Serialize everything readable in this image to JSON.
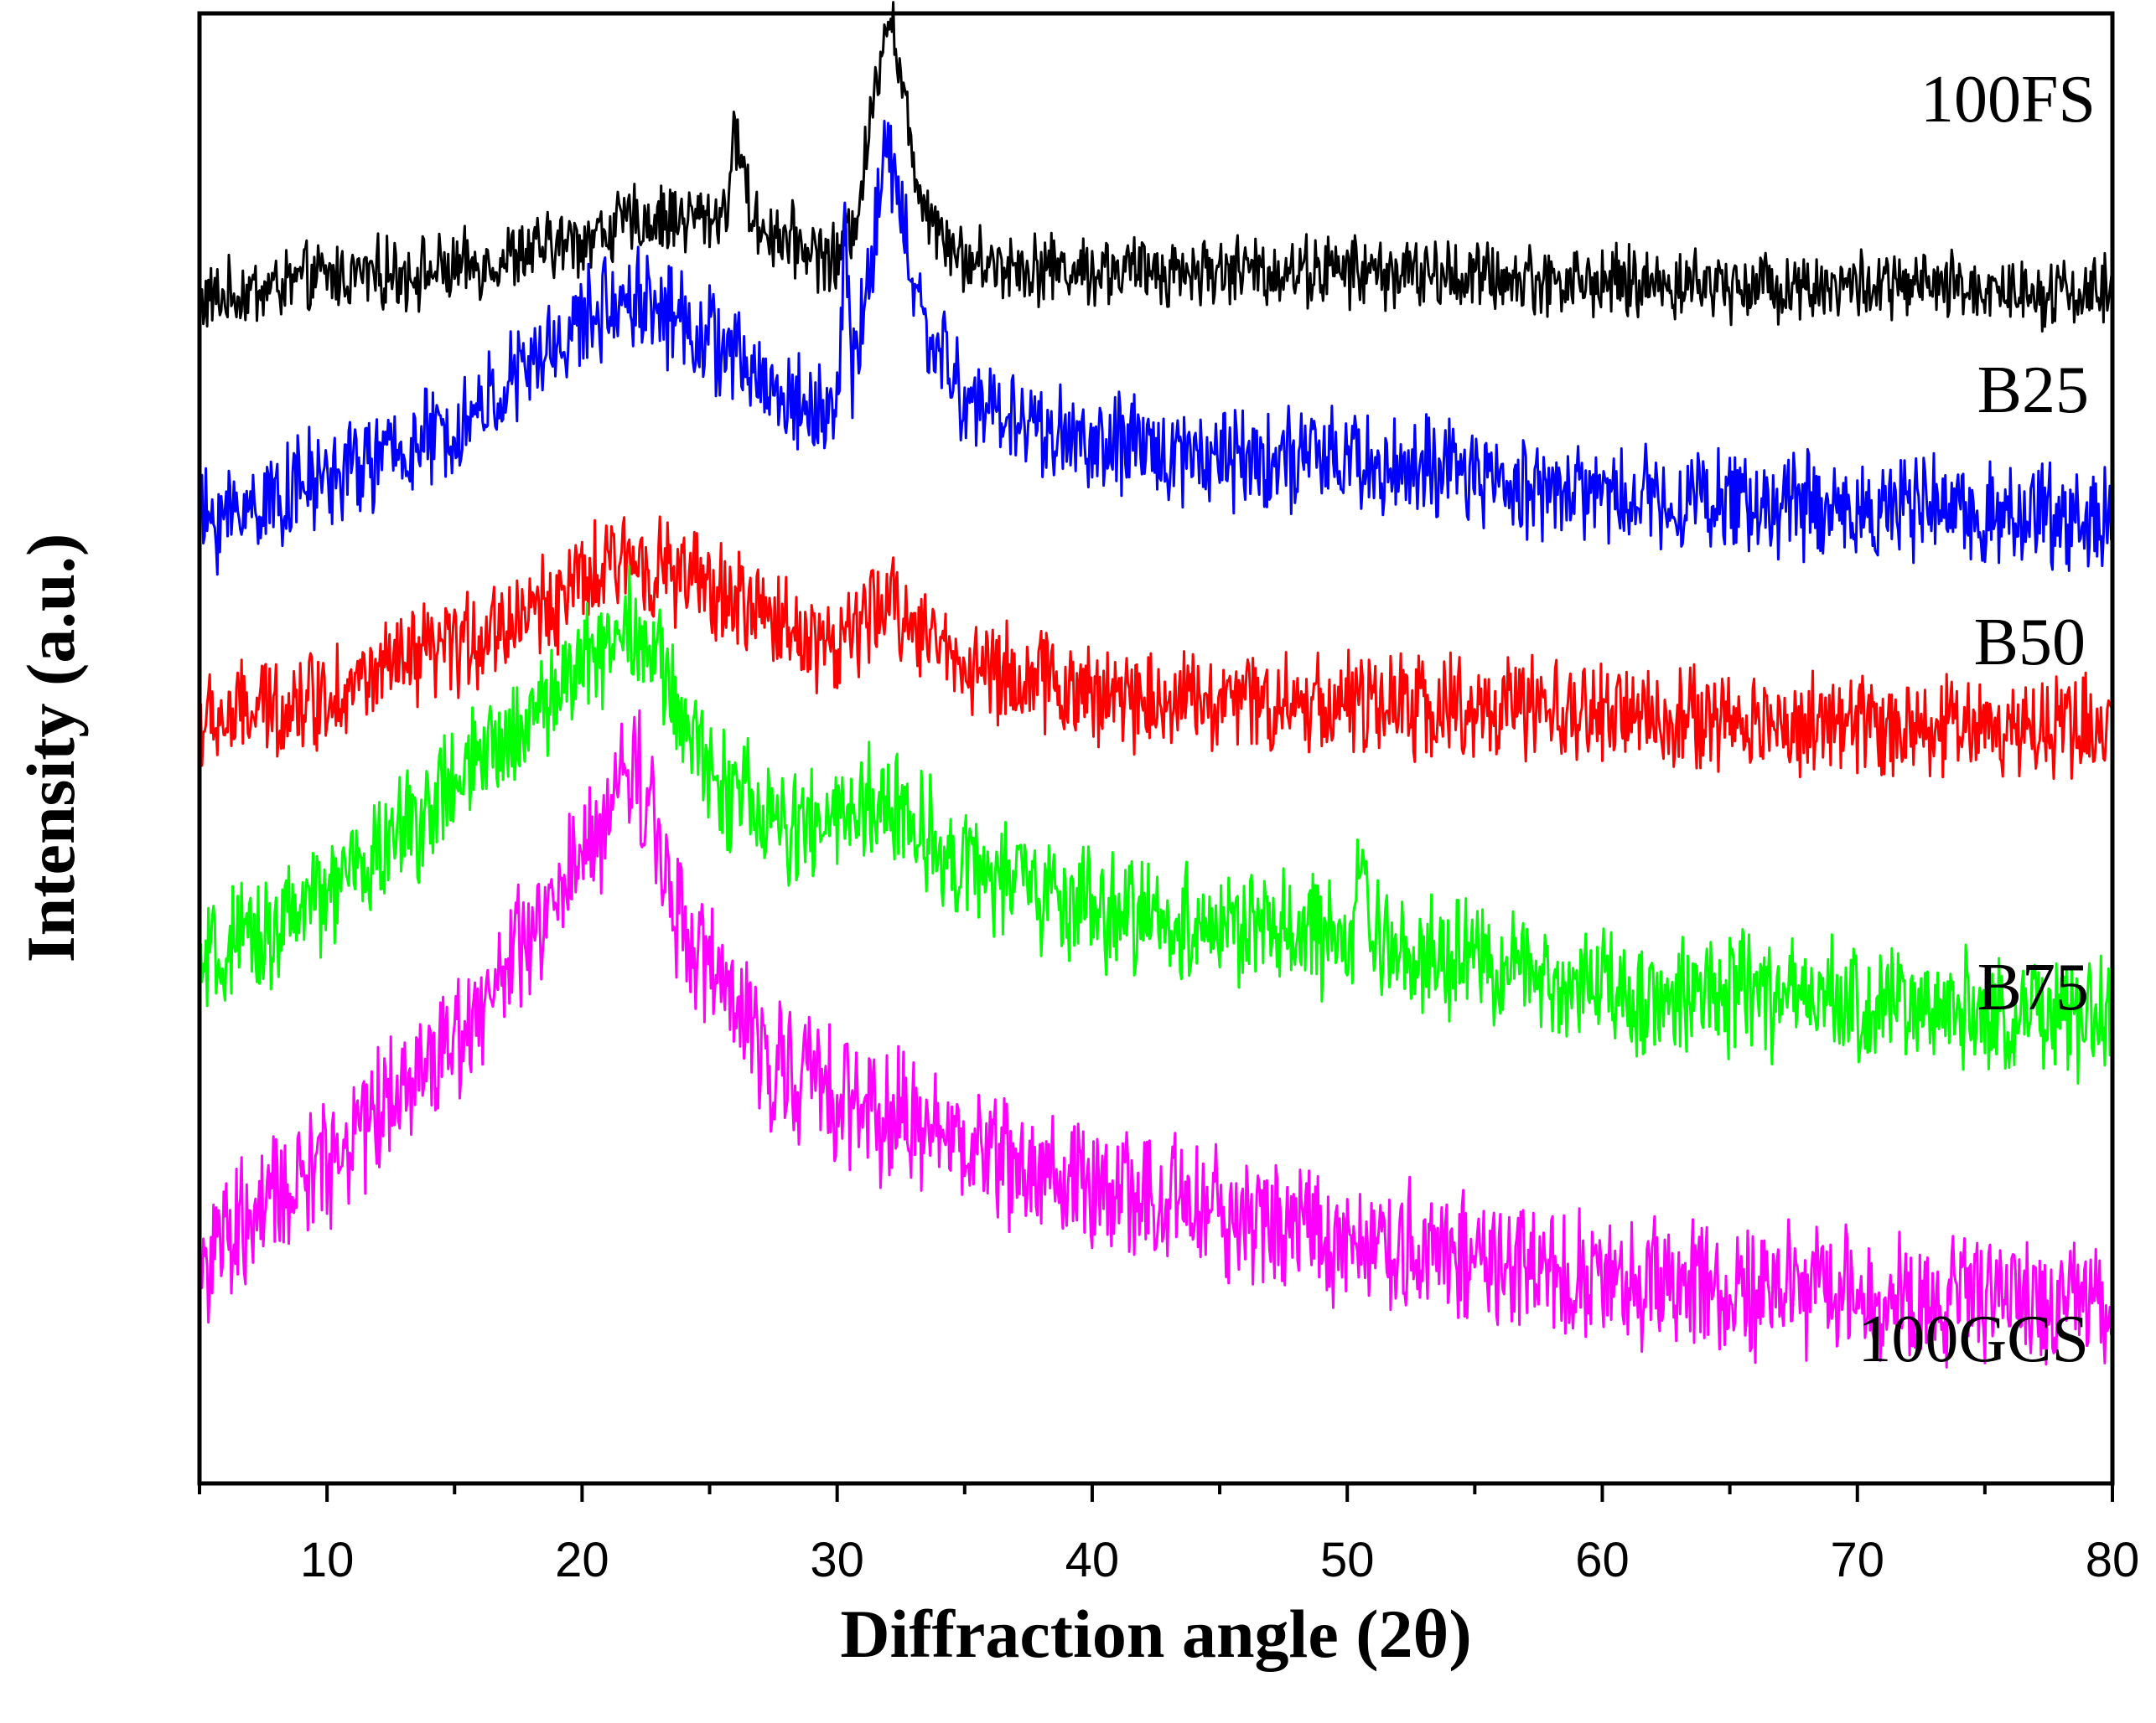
{
  "chart_data": {
    "type": "line",
    "title": "",
    "xlabel": "Diffraction angle (2θ)",
    "ylabel": "Intensity (a.u.)",
    "xlim": [
      5,
      80
    ],
    "xticks": [
      10,
      20,
      30,
      40,
      50,
      60,
      70,
      80
    ],
    "xtick_labels": [
      "10",
      "20",
      "30",
      "40",
      "50",
      "60",
      "70",
      "80"
    ],
    "y_ticks_shown": false,
    "grid": false,
    "legend": "none (series labelled at right end)",
    "series": [
      {
        "name": "100FS",
        "color": "#000000",
        "baseline_au": 3.47,
        "noise_au": 0.09,
        "broad_peaks": [
          {
            "center": 22,
            "width": 6,
            "height": 0.22
          }
        ],
        "sharp_peaks": [
          {
            "center": 26.1,
            "width": 0.35,
            "height": 0.25
          },
          {
            "center": 32.0,
            "width": 0.8,
            "height": 0.45
          }
        ],
        "points": [
          [
            5,
            3.42
          ],
          [
            10,
            3.5
          ],
          [
            15,
            3.52
          ],
          [
            20,
            3.62
          ],
          [
            22,
            3.68
          ],
          [
            26,
            3.7
          ],
          [
            30,
            3.55
          ],
          [
            32,
            3.9
          ],
          [
            35,
            3.55
          ],
          [
            40,
            3.52
          ],
          [
            50,
            3.52
          ],
          [
            60,
            3.48
          ],
          [
            70,
            3.47
          ],
          [
            80,
            3.45
          ]
        ]
      },
      {
        "name": "B25",
        "color": "#0000ff",
        "baseline_au": 2.72,
        "noise_au": 0.13,
        "broad_peaks": [
          {
            "center": 22,
            "width": 5,
            "height": 0.75
          },
          {
            "center": 32,
            "width": 2.5,
            "height": 0.3
          }
        ],
        "sharp_peaks": [
          {
            "center": 30.3,
            "width": 0.15,
            "height": 0.55
          },
          {
            "center": 32.0,
            "width": 0.8,
            "height": 0.35
          }
        ],
        "points": [
          [
            5,
            2.7
          ],
          [
            10,
            2.85
          ],
          [
            15,
            3.0
          ],
          [
            20,
            3.35
          ],
          [
            22,
            3.45
          ],
          [
            25,
            3.3
          ],
          [
            28,
            3.1
          ],
          [
            30,
            3.05
          ],
          [
            32,
            3.55
          ],
          [
            35,
            3.1
          ],
          [
            40,
            2.95
          ],
          [
            50,
            2.9
          ],
          [
            60,
            2.8
          ],
          [
            70,
            2.75
          ],
          [
            80,
            2.72
          ]
        ]
      },
      {
        "name": "B50",
        "color": "#ff0000",
        "baseline_au": 2.05,
        "noise_au": 0.13,
        "broad_peaks": [
          {
            "center": 22,
            "width": 5.5,
            "height": 0.55
          },
          {
            "center": 32,
            "width": 2.5,
            "height": 0.25
          }
        ],
        "sharp_peaks": [],
        "points": [
          [
            5,
            2.05
          ],
          [
            10,
            2.15
          ],
          [
            15,
            2.3
          ],
          [
            20,
            2.5
          ],
          [
            22,
            2.6
          ],
          [
            26,
            2.45
          ],
          [
            30,
            2.3
          ],
          [
            32,
            2.45
          ],
          [
            35,
            2.25
          ],
          [
            40,
            2.15
          ],
          [
            50,
            2.12
          ],
          [
            60,
            2.08
          ],
          [
            70,
            2.05
          ],
          [
            80,
            2.05
          ]
        ]
      },
      {
        "name": "B75",
        "color": "#00ff00",
        "baseline_au": 1.1,
        "noise_au": 0.15,
        "broad_peaks": [
          {
            "center": 21.5,
            "width": 5,
            "height": 1.2
          },
          {
            "center": 16.5,
            "width": 2.5,
            "height": 0.3
          },
          {
            "center": 32.5,
            "width": 2.5,
            "height": 0.35
          }
        ],
        "sharp_peaks": [
          {
            "center": 50.5,
            "width": 0.3,
            "height": 0.2
          }
        ],
        "points": [
          [
            5,
            1.25
          ],
          [
            10,
            1.5
          ],
          [
            15,
            1.85
          ],
          [
            17,
            2.0
          ],
          [
            20,
            2.25
          ],
          [
            22,
            2.4
          ],
          [
            25,
            1.9
          ],
          [
            28,
            1.7
          ],
          [
            32,
            1.8
          ],
          [
            35,
            1.6
          ],
          [
            40,
            1.45
          ],
          [
            50,
            1.35
          ],
          [
            60,
            1.2
          ],
          [
            70,
            1.15
          ],
          [
            80,
            1.1
          ]
        ]
      },
      {
        "name": "100GCS",
        "color": "#ff00ff",
        "baseline_au": 0.18,
        "noise_au": 0.17,
        "broad_peaks": [
          {
            "center": 22,
            "width": 4,
            "height": 1.7
          },
          {
            "center": 17,
            "width": 3,
            "height": 0.55
          }
        ],
        "sharp_peaks": [],
        "points": [
          [
            5,
            0.3
          ],
          [
            10,
            0.65
          ],
          [
            15,
            1.05
          ],
          [
            18,
            1.35
          ],
          [
            20,
            1.6
          ],
          [
            22,
            1.95
          ],
          [
            24,
            1.4
          ],
          [
            27,
            1.0
          ],
          [
            30,
            0.85
          ],
          [
            35,
            0.7
          ],
          [
            40,
            0.55
          ],
          [
            50,
            0.4
          ],
          [
            60,
            0.25
          ],
          [
            70,
            0.22
          ],
          [
            80,
            0.18
          ]
        ]
      }
    ],
    "series_labels": [
      "100FS",
      "B25",
      "B50",
      "B75",
      "100GCS"
    ]
  }
}
